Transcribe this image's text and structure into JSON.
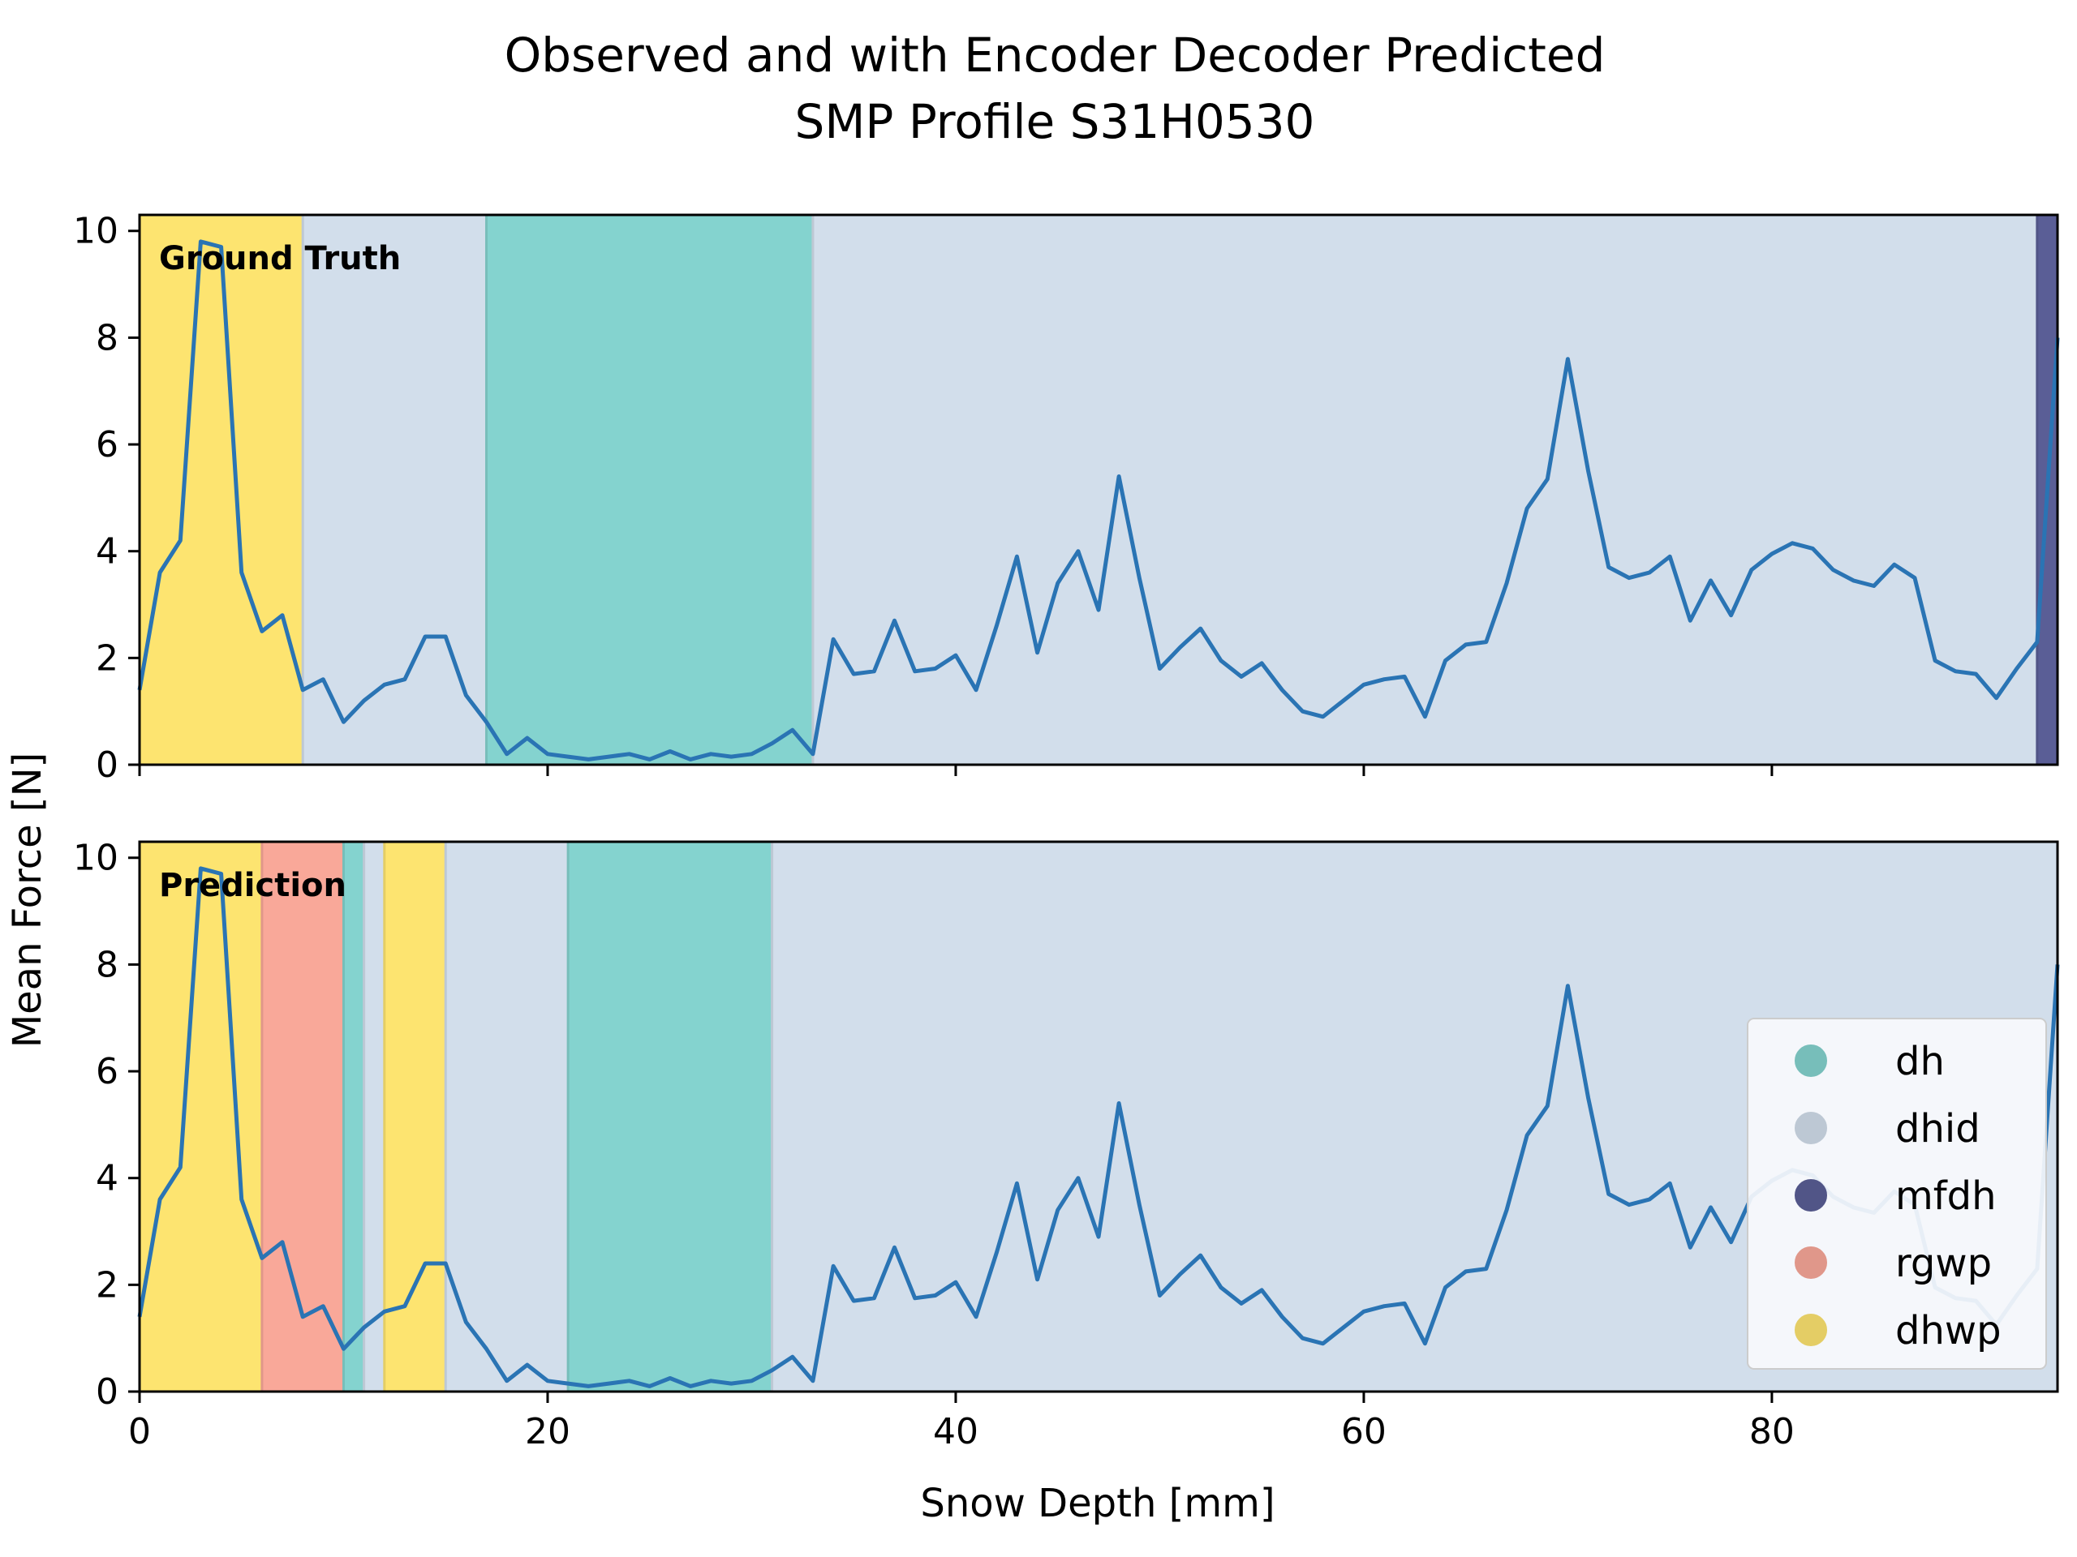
{
  "chart_data": {
    "type": "line",
    "title_line1": "Observed and with Encoder Decoder Predicted",
    "title_line2": "SMP Profile S31H0530",
    "xlabel": "Snow Depth [mm]",
    "ylabel": "Mean Force [N]",
    "xlim": [
      0,
      94
    ],
    "ylim": [
      0,
      10.3
    ],
    "xticks": [
      0,
      20,
      40,
      60,
      80
    ],
    "yticks": [
      0,
      2,
      4,
      6,
      8,
      10
    ],
    "x": [
      0,
      1,
      2,
      3,
      4,
      5,
      6,
      7,
      8,
      9,
      10,
      11,
      12,
      13,
      14,
      15,
      16,
      17,
      18,
      19,
      20,
      21,
      22,
      23,
      24,
      25,
      26,
      27,
      28,
      29,
      30,
      31,
      32,
      33,
      34,
      35,
      36,
      37,
      38,
      39,
      40,
      41,
      42,
      43,
      44,
      45,
      46,
      47,
      48,
      49,
      50,
      51,
      52,
      53,
      54,
      55,
      56,
      57,
      58,
      59,
      60,
      61,
      62,
      63,
      64,
      65,
      66,
      67,
      68,
      69,
      70,
      71,
      72,
      73,
      74,
      75,
      76,
      77,
      78,
      79,
      80,
      81,
      82,
      83,
      84,
      85,
      86,
      87,
      88,
      89,
      90,
      91,
      92,
      93,
      94
    ],
    "y": [
      1.4,
      3.6,
      4.2,
      9.8,
      9.7,
      3.6,
      2.5,
      2.8,
      1.4,
      1.6,
      0.8,
      1.2,
      1.5,
      1.6,
      2.4,
      2.4,
      1.3,
      0.8,
      0.2,
      0.5,
      0.2,
      0.15,
      0.1,
      0.15,
      0.2,
      0.1,
      0.25,
      0.1,
      0.2,
      0.15,
      0.2,
      0.4,
      0.65,
      0.2,
      2.35,
      1.7,
      1.75,
      2.7,
      1.75,
      1.8,
      2.05,
      1.4,
      2.6,
      3.9,
      2.1,
      3.4,
      4.0,
      2.9,
      5.4,
      3.5,
      1.8,
      2.2,
      2.55,
      1.95,
      1.65,
      1.9,
      1.4,
      1.0,
      0.9,
      1.2,
      1.5,
      1.6,
      1.65,
      0.9,
      1.95,
      2.25,
      2.3,
      3.4,
      4.8,
      5.35,
      7.6,
      5.5,
      3.7,
      3.5,
      3.6,
      3.9,
      2.7,
      3.45,
      2.8,
      3.65,
      3.95,
      4.15,
      4.05,
      3.65,
      3.45,
      3.35,
      3.75,
      3.5,
      1.95,
      1.75,
      1.7,
      1.25,
      1.8,
      2.3,
      8.0
    ],
    "line_color": "#2a74b4",
    "classes": [
      {
        "name": "dh",
        "color": "#84d3cf"
      },
      {
        "name": "dhid",
        "color": "#d2deeb"
      },
      {
        "name": "mfdh",
        "color": "#5a5e96"
      },
      {
        "name": "rgwp",
        "color": "#f9a899"
      },
      {
        "name": "dhwp",
        "color": "#fde470"
      }
    ],
    "panels": [
      {
        "label": "Ground Truth",
        "segments": [
          {
            "class": "dhwp",
            "start": 0,
            "end": 8
          },
          {
            "class": "dhid",
            "start": 8,
            "end": 17
          },
          {
            "class": "dh",
            "start": 17,
            "end": 33
          },
          {
            "class": "dhid",
            "start": 33,
            "end": 93
          },
          {
            "class": "mfdh",
            "start": 93,
            "end": 94
          }
        ]
      },
      {
        "label": "Prediction",
        "segments": [
          {
            "class": "dhwp",
            "start": 0,
            "end": 6
          },
          {
            "class": "rgwp",
            "start": 6,
            "end": 10
          },
          {
            "class": "dh",
            "start": 10,
            "end": 11
          },
          {
            "class": "dhid",
            "start": 11,
            "end": 12
          },
          {
            "class": "dhwp",
            "start": 12,
            "end": 15
          },
          {
            "class": "dhid",
            "start": 15,
            "end": 21
          },
          {
            "class": "dh",
            "start": 21,
            "end": 31
          },
          {
            "class": "dhid",
            "start": 31,
            "end": 94
          }
        ]
      }
    ],
    "legend_position": "lower-right"
  }
}
